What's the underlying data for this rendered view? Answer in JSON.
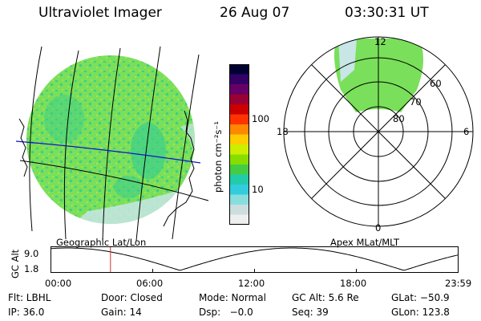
{
  "header": {
    "title": "Ultraviolet Imager",
    "date": "26 Aug 07",
    "time": "03:30:31 UT"
  },
  "colorbar": {
    "unit_label": "photon cm⁻²s⁻¹",
    "ticks": [
      "100",
      "10"
    ],
    "colors": [
      "#000033",
      "#330066",
      "#660066",
      "#990033",
      "#cc0000",
      "#ff3300",
      "#ff8800",
      "#ffcc00",
      "#ccee00",
      "#88dd00",
      "#44cc44",
      "#22ccaa",
      "#33ccdd",
      "#88dddd",
      "#ccdddd",
      "#eeeeee"
    ]
  },
  "left_image": {
    "caption": "Geographic Lat/Lon",
    "colors": {
      "base": "#7adf5a",
      "patch": "#3ccf8a",
      "edge": "#c8e6e6"
    }
  },
  "polar_plot": {
    "caption": "Apex MLat/MLT",
    "mlt_labels": [
      "12",
      "18",
      "6",
      "0"
    ],
    "mlat_labels": [
      "60",
      "70",
      "80"
    ]
  },
  "altitude_plot": {
    "ylabel": "GC Alt",
    "yticks": [
      "9.0",
      "1.8"
    ],
    "xticks": [
      "00:00",
      "06:00",
      "12:00",
      "18:00",
      "23:59"
    ],
    "marker_time_hours": 3.51,
    "marker_color": "#cc3333"
  },
  "info": {
    "row1": [
      "Flt: LBHL",
      "Door: Closed",
      "Mode: Normal",
      "GC Alt: 5.6 Re",
      "GLat: −50.9"
    ],
    "row2": [
      "IP: 36.0",
      "Gain: 14",
      "Dsp:   −0.0",
      "Seq: 39",
      "GLon: 123.8"
    ]
  }
}
